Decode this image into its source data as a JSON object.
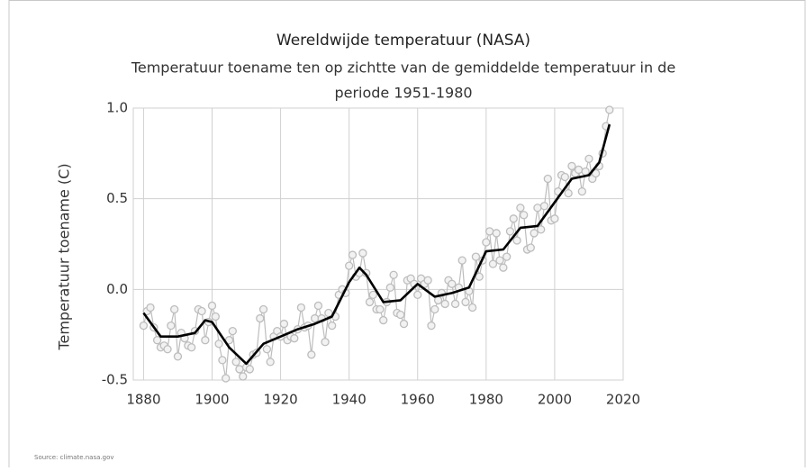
{
  "chart_data": {
    "type": "line",
    "title": "Wereldwijde temperatuur (NASA)",
    "subtitle": [
      "Temperatuur toename ten op zichtte van de gemiddelde temperatuur in de",
      "periode 1951-1980"
    ],
    "y_label": "Temperatuur toename (C)",
    "source": "Source: climate.nasa.gov",
    "xlim": [
      1877,
      2020
    ],
    "xticks": [
      1880,
      1900,
      1920,
      1940,
      1960,
      1980,
      2000,
      2020
    ],
    "ylim": [
      -0.5,
      1.0
    ],
    "yticks": [
      {
        "value": -0.5,
        "label": "-0.5"
      },
      {
        "value": 0,
        "label": "0.0"
      },
      {
        "value": 0.5,
        "label": "0.5"
      },
      {
        "value": 1.0,
        "label": "1.0"
      }
    ],
    "grid": true,
    "series": [
      {
        "color": "#bdbdbd",
        "markers": true,
        "x": [
          1880,
          1881,
          1882,
          1883,
          1884,
          1885,
          1886,
          1887,
          1888,
          1889,
          1890,
          1891,
          1892,
          1893,
          1894,
          1895,
          1896,
          1897,
          1898,
          1899,
          1900,
          1901,
          1902,
          1903,
          1904,
          1905,
          1906,
          1907,
          1908,
          1909,
          1910,
          1911,
          1912,
          1913,
          1914,
          1915,
          1916,
          1917,
          1918,
          1919,
          1920,
          1921,
          1922,
          1923,
          1924,
          1925,
          1926,
          1927,
          1928,
          1929,
          1930,
          1931,
          1932,
          1933,
          1934,
          1935,
          1936,
          1937,
          1938,
          1939,
          1940,
          1941,
          1942,
          1943,
          1944,
          1945,
          1946,
          1947,
          1948,
          1949,
          1950,
          1951,
          1952,
          1953,
          1954,
          1955,
          1956,
          1957,
          1958,
          1959,
          1960,
          1961,
          1962,
          1963,
          1964,
          1965,
          1966,
          1967,
          1968,
          1969,
          1970,
          1971,
          1972,
          1973,
          1974,
          1975,
          1976,
          1977,
          1978,
          1979,
          1980,
          1981,
          1982,
          1983,
          1984,
          1985,
          1986,
          1987,
          1988,
          1989,
          1990,
          1991,
          1992,
          1993,
          1994,
          1995,
          1996,
          1997,
          1998,
          1999,
          2000,
          2001,
          2002,
          2003,
          2004,
          2005,
          2006,
          2007,
          2008,
          2009,
          2010,
          2011,
          2012,
          2013,
          2014,
          2015,
          2016
        ],
        "values": [
          -0.2,
          -0.12,
          -0.1,
          -0.21,
          -0.28,
          -0.32,
          -0.31,
          -0.33,
          -0.2,
          -0.11,
          -0.37,
          -0.24,
          -0.27,
          -0.31,
          -0.32,
          -0.23,
          -0.11,
          -0.12,
          -0.28,
          -0.18,
          -0.09,
          -0.15,
          -0.3,
          -0.39,
          -0.49,
          -0.28,
          -0.23,
          -0.4,
          -0.44,
          -0.48,
          -0.43,
          -0.44,
          -0.36,
          -0.35,
          -0.16,
          -0.11,
          -0.33,
          -0.4,
          -0.26,
          -0.23,
          -0.26,
          -0.19,
          -0.28,
          -0.26,
          -0.27,
          -0.22,
          -0.1,
          -0.21,
          -0.2,
          -0.36,
          -0.16,
          -0.09,
          -0.16,
          -0.29,
          -0.13,
          -0.2,
          -0.15,
          -0.03,
          0,
          -0.02,
          0.13,
          0.19,
          0.07,
          0.09,
          0.2,
          0.09,
          -0.07,
          -0.03,
          -0.11,
          -0.11,
          -0.17,
          -0.07,
          0.01,
          0.08,
          -0.13,
          -0.14,
          -0.19,
          0.05,
          0.06,
          0.03,
          -0.03,
          0.06,
          0.03,
          0.05,
          -0.2,
          -0.11,
          -0.06,
          -0.02,
          -0.08,
          0.05,
          0.03,
          -0.08,
          0.01,
          0.16,
          -0.07,
          -0.01,
          -0.1,
          0.18,
          0.07,
          0.16,
          0.26,
          0.32,
          0.14,
          0.31,
          0.16,
          0.12,
          0.18,
          0.32,
          0.39,
          0.27,
          0.45,
          0.41,
          0.22,
          0.23,
          0.31,
          0.45,
          0.33,
          0.46,
          0.61,
          0.38,
          0.39,
          0.54,
          0.63,
          0.62,
          0.53,
          0.68,
          0.64,
          0.66,
          0.54,
          0.65,
          0.72,
          0.61,
          0.64,
          0.68,
          0.75,
          0.9,
          0.99
        ]
      },
      {
        "color": "#000000",
        "markers": false,
        "x": [
          1880,
          1885,
          1890,
          1895,
          1898,
          1900,
          1905,
          1910,
          1915,
          1920,
          1925,
          1930,
          1935,
          1940,
          1943,
          1945,
          1950,
          1955,
          1960,
          1965,
          1970,
          1975,
          1980,
          1985,
          1990,
          1995,
          2000,
          2005,
          2010,
          2013,
          2016
        ],
        "values": [
          -0.13,
          -0.26,
          -0.26,
          -0.24,
          -0.17,
          -0.18,
          -0.32,
          -0.41,
          -0.3,
          -0.26,
          -0.22,
          -0.19,
          -0.15,
          0.04,
          0.12,
          0.08,
          -0.07,
          -0.06,
          0.03,
          -0.04,
          -0.02,
          0.01,
          0.21,
          0.22,
          0.34,
          0.35,
          0.48,
          0.61,
          0.63,
          0.7,
          0.91
        ]
      }
    ]
  }
}
